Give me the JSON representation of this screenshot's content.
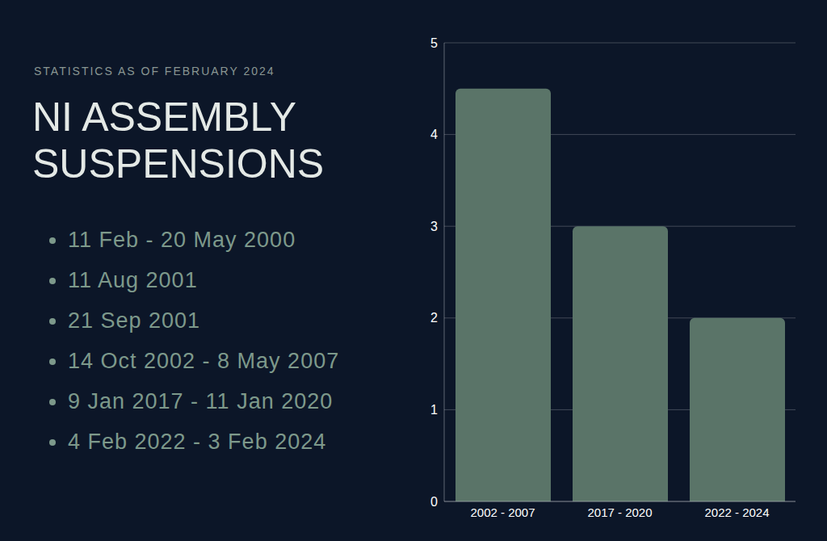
{
  "chart_data": {
    "type": "bar",
    "title": "NI ASSEMBLY SUSPENSIONS",
    "subtitle": "STATISTICS AS OF FEBRUARY 2024",
    "annotations": [
      "11 Feb - 20 May 2000",
      "11 Aug 2001",
      "21 Sep 2001",
      "14 Oct 2002 - 8 May 2007",
      "9 Jan 2017 - 11 Jan 2020",
      "4 Feb 2022 - 3 Feb 2024"
    ],
    "categories": [
      "2002 - 2007",
      "2017 - 2020",
      "2022 - 2024"
    ],
    "values": [
      4.5,
      3,
      2
    ],
    "color": "#5a7468",
    "ylim": [
      0,
      5
    ],
    "yticks": [
      0,
      1,
      2,
      3,
      4,
      5
    ],
    "grid": true
  }
}
